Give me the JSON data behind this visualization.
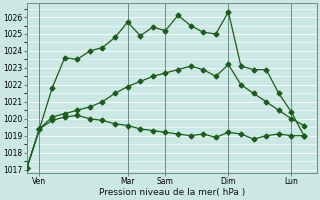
{
  "xlabel": "Pression niveau de la mer( hPa )",
  "background_color": "#cce8e4",
  "grid_color": "#b0d8d4",
  "line_color": "#1a5c1a",
  "vline_color": "#6a8a8a",
  "ylim": [
    1016.8,
    1026.8
  ],
  "xlim": [
    0,
    23
  ],
  "yticks": [
    1017,
    1018,
    1019,
    1020,
    1021,
    1022,
    1023,
    1024,
    1025,
    1026
  ],
  "xtick_positions": [
    1,
    8,
    11,
    16,
    21
  ],
  "xtick_labels": [
    "Ven",
    "Mar",
    "Sam",
    "Dim",
    "Lun"
  ],
  "vline_positions": [
    1,
    8,
    11,
    16,
    21
  ],
  "series1_x": [
    0,
    1,
    2,
    3,
    4,
    5,
    6,
    7,
    8,
    9,
    10,
    11,
    12,
    13,
    14,
    15,
    16,
    17,
    18,
    19,
    20,
    21,
    22
  ],
  "series1_y": [
    1017.1,
    1019.4,
    1021.8,
    1023.6,
    1023.5,
    1024.0,
    1024.2,
    1024.8,
    1025.7,
    1024.9,
    1025.4,
    1025.2,
    1026.1,
    1025.5,
    1025.1,
    1025.0,
    1026.3,
    1023.1,
    1022.9,
    1022.9,
    1021.5,
    1020.4,
    1019.0
  ],
  "series2_x": [
    0,
    1,
    2,
    3,
    4,
    5,
    6,
    7,
    8,
    9,
    10,
    11,
    12,
    13,
    14,
    15,
    16,
    17,
    18,
    19,
    20,
    21,
    22
  ],
  "series2_y": [
    1017.1,
    1019.4,
    1019.9,
    1020.1,
    1020.2,
    1020.0,
    1019.9,
    1019.7,
    1019.6,
    1019.4,
    1019.3,
    1019.2,
    1019.1,
    1019.0,
    1019.1,
    1018.9,
    1019.2,
    1019.1,
    1018.8,
    1019.0,
    1019.1,
    1019.0,
    1019.0
  ],
  "series3_x": [
    0,
    1,
    2,
    3,
    4,
    5,
    6,
    7,
    8,
    9,
    10,
    11,
    12,
    13,
    14,
    15,
    16,
    17,
    18,
    19,
    20,
    21,
    22
  ],
  "series3_y": [
    1017.1,
    1019.4,
    1020.1,
    1020.3,
    1020.5,
    1020.7,
    1021.0,
    1021.5,
    1021.9,
    1022.2,
    1022.5,
    1022.7,
    1022.9,
    1023.1,
    1022.9,
    1022.5,
    1023.2,
    1022.0,
    1021.5,
    1021.0,
    1020.5,
    1020.0,
    1019.6
  ]
}
